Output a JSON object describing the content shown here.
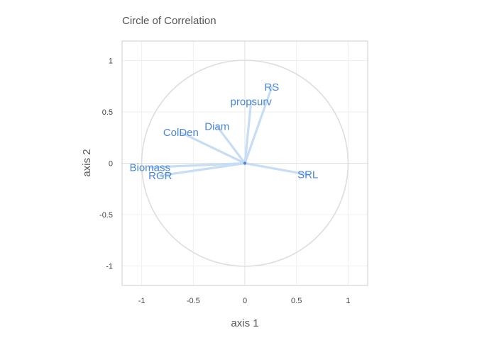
{
  "chart_data": {
    "type": "scatter",
    "title": "Circle of Correlation",
    "xlabel": "axis 1",
    "ylabel": "axis 2",
    "xlim": [
      -1.19,
      1.19
    ],
    "ylim": [
      -1.19,
      1.19
    ],
    "x_ticks": [
      "-1",
      "-0.5",
      "0",
      "0.5",
      "1"
    ],
    "y_ticks": [
      "1",
      "0.5",
      "0",
      "-0.5",
      "-1"
    ],
    "grid": true,
    "unit_circle": true,
    "colors": {
      "arrow": "#c7ddf4",
      "label": "#4a86d6",
      "circle": "#dddddd",
      "frame": "#cccccc"
    },
    "variables": [
      {
        "name": "RS",
        "x": 0.26,
        "y": 0.74
      },
      {
        "name": "propsurv",
        "x": 0.06,
        "y": 0.6
      },
      {
        "name": "Diam",
        "x": -0.27,
        "y": 0.36
      },
      {
        "name": "ColDen",
        "x": -0.62,
        "y": 0.3
      },
      {
        "name": "Biomass",
        "x": -0.92,
        "y": -0.04
      },
      {
        "name": "RGR",
        "x": -0.82,
        "y": -0.12
      },
      {
        "name": "SRL",
        "x": 0.61,
        "y": -0.11
      }
    ]
  }
}
